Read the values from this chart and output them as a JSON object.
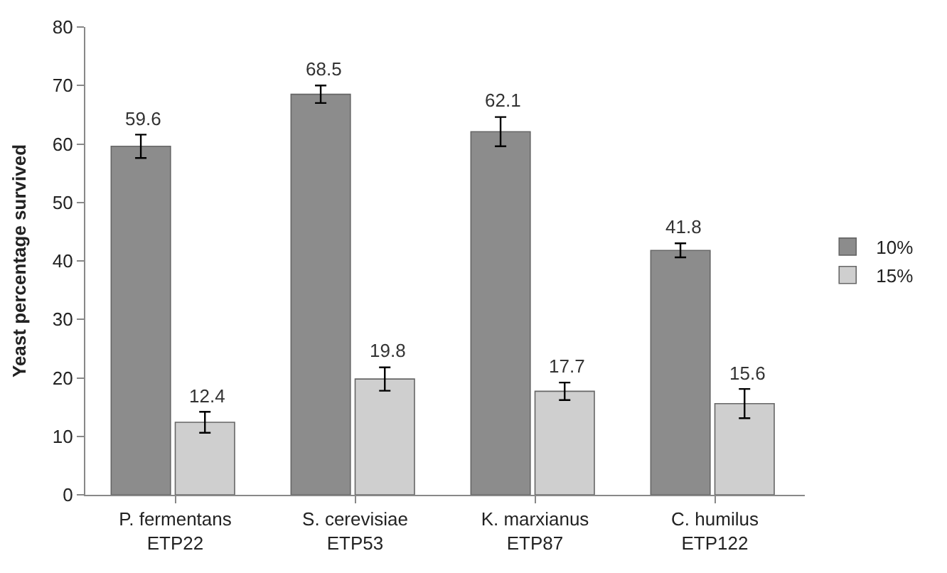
{
  "chart_data": {
    "type": "bar",
    "ylabel": "Yeast percentage survived",
    "categories": [
      "P. fermentans\nETP22",
      "S. cerevisiae\nETP53",
      "K. marxianus\nETP87",
      "C. humilus\nETP122"
    ],
    "series": [
      {
        "name": "10%",
        "color": "#8c8c8c",
        "values": [
          59.6,
          68.5,
          62.1,
          41.8
        ],
        "errors": [
          2.0,
          1.5,
          2.5,
          1.2
        ]
      },
      {
        "name": "15%",
        "color": "#cfcfcf",
        "values": [
          12.4,
          19.8,
          17.7,
          15.6
        ],
        "errors": [
          1.8,
          2.0,
          1.5,
          2.5
        ]
      }
    ],
    "ylim": [
      0,
      80
    ],
    "yticks": [
      0,
      10,
      20,
      30,
      40,
      50,
      60,
      70,
      80
    ],
    "data_labels": true,
    "legend": "right"
  }
}
